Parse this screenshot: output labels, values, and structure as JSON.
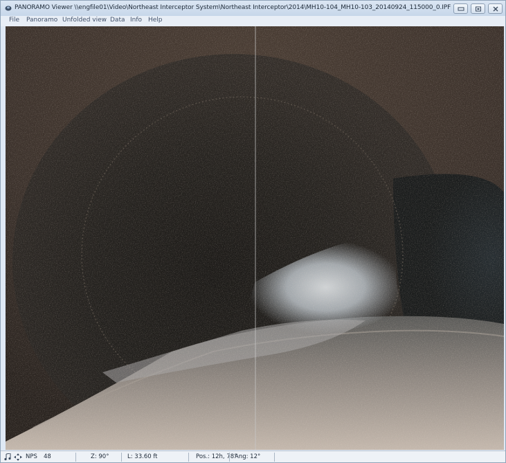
{
  "window": {
    "title": "PANORAMO Viewer  \\\\engfile01\\Video\\Northeast Interceptor System\\Northeast Interceptor\\2014\\MH10-104_MH10-103_20140924_115000_0.IPF"
  },
  "menu": {
    "items": [
      "File",
      "Panoramo",
      "Unfolded view",
      "Data",
      "Info",
      "Help"
    ]
  },
  "status": {
    "nps_label": "NPS",
    "nps_value": "48",
    "zoom": "Z: 90°",
    "length": "L: 33.60 ft",
    "position": "Pos.: 12h, 78°",
    "angle": "Ang: 12°"
  },
  "icons": {
    "app": "panoramo-app-icon",
    "minimize": "minimize-icon",
    "maximize": "maximize-icon",
    "close": "close-icon",
    "status_left": "music-note-icon",
    "status_right": "compass-arrows-icon"
  }
}
